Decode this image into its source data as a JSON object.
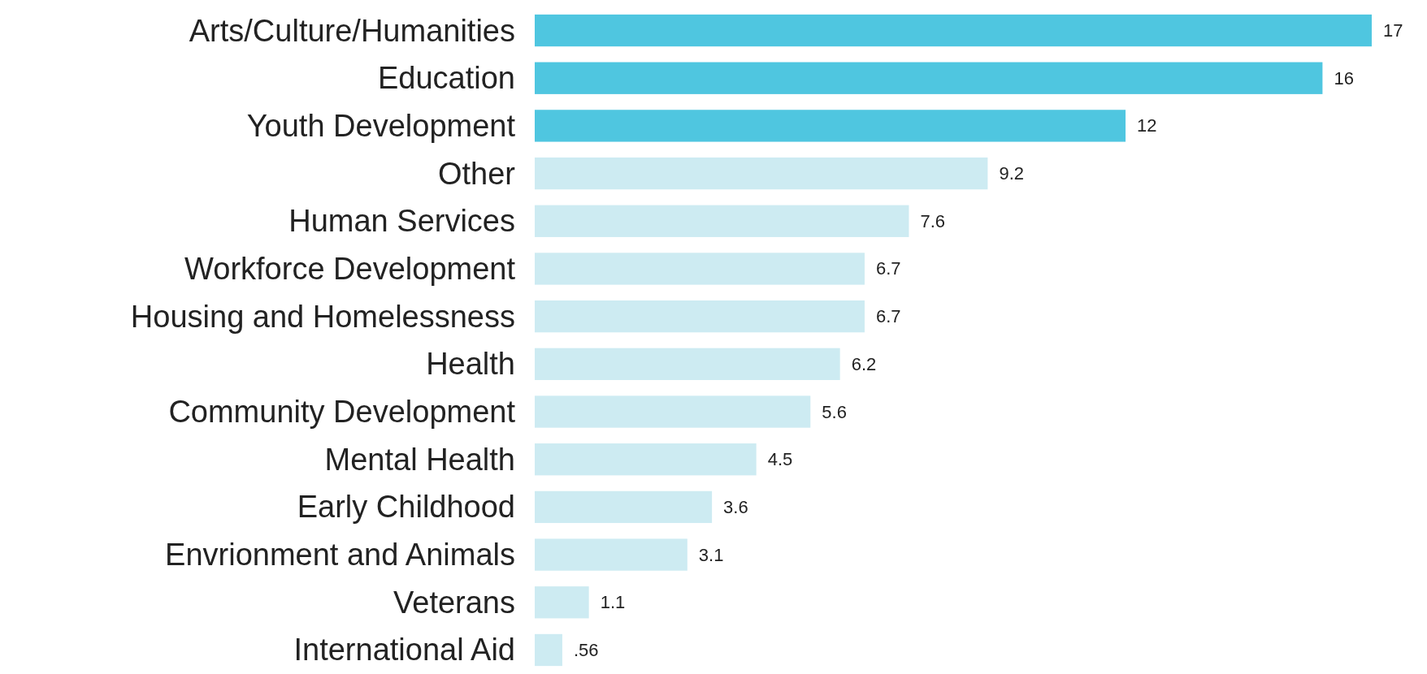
{
  "chart_data": {
    "type": "bar",
    "orientation": "horizontal",
    "categories": [
      "Arts/Culture/Humanities",
      "Education",
      "Youth Development",
      "Other",
      "Human Services",
      "Workforce Development",
      "Housing and Homelessness",
      "Health",
      "Community Development",
      "Mental Health",
      "Early Childhood",
      "Envrionment and Animals",
      "Veterans",
      "International Aid"
    ],
    "values": [
      17,
      16,
      12,
      9.2,
      7.6,
      6.7,
      6.7,
      6.2,
      5.6,
      4.5,
      3.6,
      3.1,
      1.1,
      0.56
    ],
    "value_labels": [
      "17",
      "16",
      "12",
      "9.2",
      "7.6",
      "6.7",
      "6.7",
      "6.2",
      "5.6",
      "4.5",
      "3.6",
      "3.1",
      "1.1",
      ".56"
    ],
    "colors": [
      "#4fc6e0",
      "#4fc6e0",
      "#4fc6e0",
      "#cdebf2",
      "#cdebf2",
      "#cdebf2",
      "#cdebf2",
      "#cdebf2",
      "#cdebf2",
      "#cdebf2",
      "#cdebf2",
      "#cdebf2",
      "#cdebf2",
      "#cdebf2"
    ]
  }
}
